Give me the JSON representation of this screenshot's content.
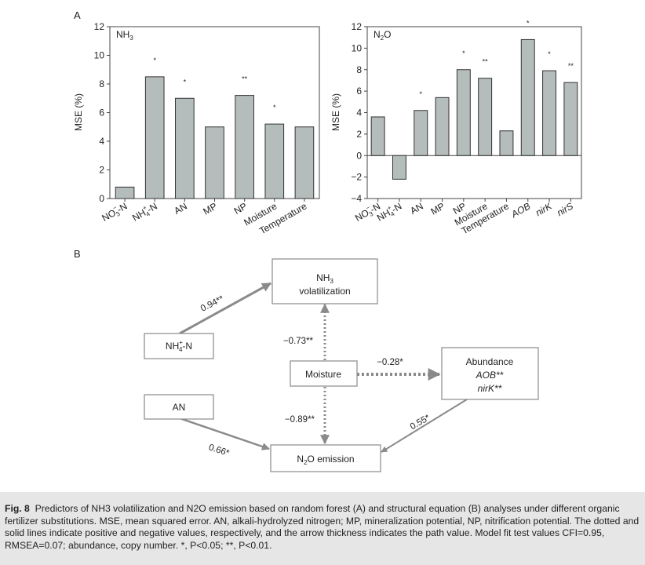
{
  "panel_labels": {
    "a": "A",
    "b": "B"
  },
  "chart_data": [
    {
      "type": "bar",
      "title": "NH3",
      "ylabel": "MSE (%)",
      "ylim": [
        0,
        12
      ],
      "yticks": [
        0,
        2,
        4,
        6,
        8,
        10,
        12
      ],
      "categories": [
        "NO3−-N",
        "NH4+-N",
        "AN",
        "MP",
        "NP",
        "Moisture",
        "Temperature"
      ],
      "italic_categories": [],
      "values": [
        0.8,
        8.5,
        7.0,
        5.0,
        7.2,
        5.2,
        5.0
      ],
      "significance": [
        "",
        "*",
        "*",
        "",
        "**",
        "*",
        ""
      ],
      "bar_color": "#b4bcbc"
    },
    {
      "type": "bar",
      "title": "N2O",
      "ylabel": "MSE (%)",
      "ylim": [
        -4,
        12
      ],
      "yticks": [
        -4,
        -2,
        0,
        2,
        4,
        6,
        8,
        10,
        12
      ],
      "categories": [
        "NO3−-N",
        "NH4+-N",
        "AN",
        "MP",
        "NP",
        "Moisture",
        "Temperature",
        "AOB",
        "nirK",
        "nirS"
      ],
      "italic_categories": [
        "AOB",
        "nirK",
        "nirS"
      ],
      "values": [
        3.6,
        -2.2,
        4.2,
        5.4,
        8.0,
        7.2,
        2.3,
        10.8,
        7.9,
        6.8
      ],
      "significance": [
        "",
        "",
        "*",
        "",
        "*",
        "**",
        "",
        "*",
        "*",
        "**"
      ],
      "bar_color": "#b4bcbc"
    }
  ],
  "diagram": {
    "nodes": {
      "nh3": {
        "line1": "NH3",
        "line2": "volatilization"
      },
      "nh4": "NH4+-N",
      "an": "AN",
      "moisture": "Moisture",
      "abundance": {
        "line1": "Abundance",
        "line2": "AOB**",
        "line3": "nirK**"
      },
      "n2o": "N2O emission"
    },
    "paths": {
      "nh4_nh3": "0.94**",
      "moisture_nh3": "−0.73**",
      "moisture_abundance": "−0.28*",
      "moisture_n2o": "−0.89**",
      "an_n2o": "0.66*",
      "abundance_n2o": "0.55*"
    }
  },
  "caption": {
    "label": "Fig. 8",
    "text": "Predictors of NH3 volatilization and N2O emission based on random forest (A) and structural equation (B) analyses under different organic fertilizer substitutions.  MSE, mean squared error.  AN, alkali-hydrolyzed nitrogen; MP, mineralization potential, NP, nitrification potential.  The dotted and solid lines indicate positive and negative values, respectively, and the arrow thickness indicates the path value.  Model fit test values CFI=0.95, RMSEA=0.07; abundance, copy number.  *, P<0.05; **, P<0.01."
  }
}
